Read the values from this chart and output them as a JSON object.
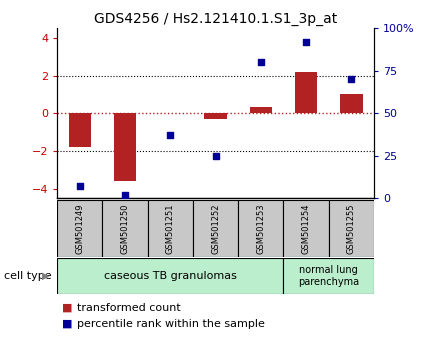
{
  "title": "GDS4256 / Hs2.121410.1.S1_3p_at",
  "samples": [
    "GSM501249",
    "GSM501250",
    "GSM501251",
    "GSM501252",
    "GSM501253",
    "GSM501254",
    "GSM501255"
  ],
  "red_bars": [
    -1.8,
    -3.6,
    0.02,
    -0.28,
    0.35,
    2.2,
    1.0
  ],
  "blue_dots": [
    7,
    2,
    37,
    25,
    80,
    92,
    70
  ],
  "ylim_left": [
    -4.5,
    4.5
  ],
  "ylim_right": [
    0,
    100
  ],
  "yticks_left": [
    -4,
    -2,
    0,
    2,
    4
  ],
  "yticks_right": [
    0,
    25,
    50,
    75,
    100
  ],
  "ytick_labels_right": [
    "0",
    "25",
    "50",
    "75",
    "100%"
  ],
  "group1_label": "caseous TB granulomas",
  "group2_label": "normal lung\nparenchyma",
  "cell_type_label": "cell type",
  "legend_red": "transformed count",
  "legend_blue": "percentile rank within the sample",
  "bar_color": "#b22222",
  "dot_color": "#000099",
  "ytick_left_color": "#cc0000",
  "group1_color": "#bbeecc",
  "group2_color": "#bbeecc",
  "sample_box_color": "#c8c8c8",
  "bar_width": 0.5,
  "dot_size": 22,
  "title_fontsize": 10,
  "tick_fontsize": 8,
  "label_fontsize": 8,
  "legend_fontsize": 8
}
